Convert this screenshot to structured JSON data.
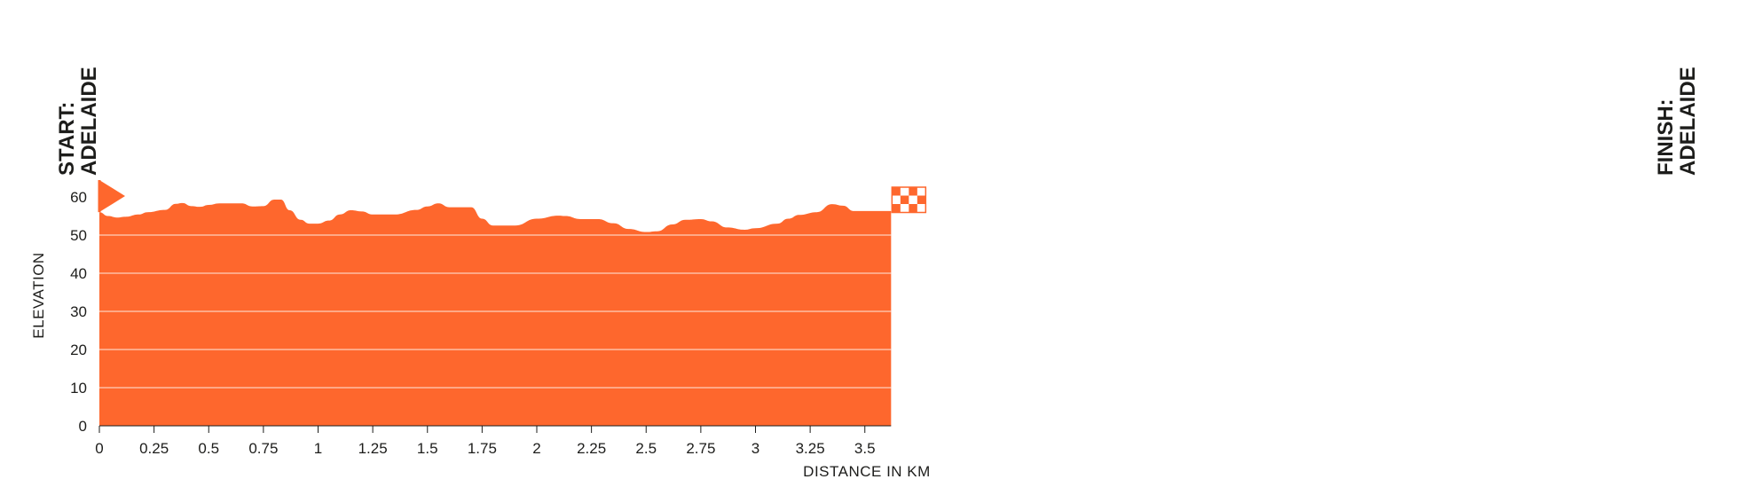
{
  "chart_data": {
    "type": "area",
    "xlabel": "DISTANCE IN KM",
    "ylabel": "ELEVATION",
    "xlim": [
      0,
      3.62
    ],
    "ylim": [
      0,
      60
    ],
    "x_ticks": [
      "0",
      "0.25",
      "0.5",
      "0.75",
      "1",
      "1.25",
      "1.5",
      "1.75",
      "2",
      "2.25",
      "2.5",
      "2.75",
      "3",
      "3.25",
      "3.5"
    ],
    "y_ticks": [
      "0",
      "10",
      "20",
      "30",
      "40",
      "50",
      "60"
    ],
    "grid": true,
    "series": [
      {
        "x": [
          0,
          0.04,
          0.08,
          0.12,
          0.18,
          0.22,
          0.3,
          0.35,
          0.38,
          0.42,
          0.46,
          0.5,
          0.55,
          0.65,
          0.7,
          0.75,
          0.8,
          0.83,
          0.87,
          0.92,
          0.96,
          1.0,
          1.05,
          1.1,
          1.15,
          1.2,
          1.25,
          1.35,
          1.45,
          1.5,
          1.55,
          1.6,
          1.7,
          1.75,
          1.8,
          1.9,
          2.0,
          2.1,
          2.13,
          2.2,
          2.28,
          2.35,
          2.42,
          2.5,
          2.55,
          2.62,
          2.68,
          2.75,
          2.8,
          2.87,
          2.95,
          3.0,
          3.1,
          3.15,
          3.2,
          3.28,
          3.35,
          3.4,
          3.45,
          3.5,
          3.6
        ],
        "values": [
          56,
          55,
          54.6,
          54.8,
          55.4,
          56,
          56.6,
          58.2,
          58.4,
          57.6,
          57.4,
          57.9,
          58.3,
          58.3,
          57.5,
          57.6,
          59.3,
          59.3,
          56.5,
          54.0,
          53.0,
          53.0,
          53.8,
          55.4,
          56.5,
          56.2,
          55.4,
          55.4,
          56.6,
          57.5,
          58.3,
          57.3,
          57.3,
          54.3,
          52.5,
          52.5,
          54.3,
          55.1,
          55.0,
          54.2,
          54.2,
          53.1,
          51.6,
          50.8,
          51.0,
          52.8,
          54.0,
          54.2,
          53.6,
          52.0,
          51.4,
          51.8,
          53.0,
          54.3,
          55.3,
          56.0,
          58.1,
          57.7,
          56.3,
          56.3,
          56.3
        ]
      }
    ],
    "annotations": {
      "start_line1": "START:",
      "start_line2": "ADELAIDE",
      "finish_line1": "FINISH:",
      "finish_line2": "ADELAIDE"
    },
    "colors": {
      "fill": "#fe672d",
      "grid": "#ffffff",
      "text": "#1d1d1b"
    }
  }
}
